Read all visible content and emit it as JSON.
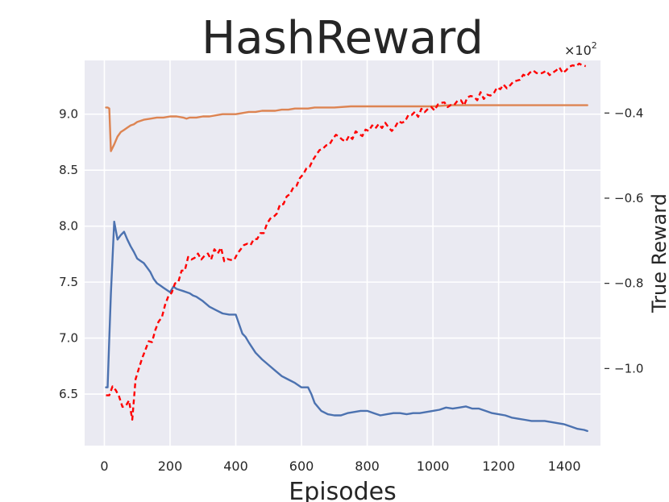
{
  "chart_data": {
    "type": "line",
    "title": "HashReward",
    "xlabel": "Episodes",
    "ylabel_left": "",
    "ylabel_right": "True Reward",
    "right_axis_multiplier": "×10",
    "right_axis_multiplier_exp": "2",
    "grid": true,
    "legend": "none",
    "background_color": "#EAEAF2",
    "x_ticks": [
      0,
      200,
      400,
      600,
      800,
      1000,
      1200,
      1400
    ],
    "xlim": [
      -60,
      1510
    ],
    "y_left_ticks": [
      "6.5",
      "7.0",
      "7.5",
      "8.0",
      "8.5",
      "9.0"
    ],
    "y_left_tick_values": [
      6.5,
      7.0,
      7.5,
      8.0,
      8.5,
      9.0
    ],
    "y_left_lim": [
      6.04,
      9.48
    ],
    "y_right_ticks": [
      "−1.0",
      "−0.8",
      "−0.6",
      "−0.4"
    ],
    "y_right_tick_values": [
      -1.0,
      -0.8,
      -0.6,
      -0.4
    ],
    "y_right_lim": [
      -1.181,
      -0.2765
    ],
    "series": [
      {
        "axis": "left",
        "color": "#4C72B0",
        "style": "solid",
        "x": [
          5,
          10,
          15,
          20,
          30,
          40,
          50,
          60,
          70,
          80,
          90,
          100,
          110,
          120,
          130,
          140,
          150,
          160,
          170,
          180,
          190,
          200,
          210,
          220,
          230,
          240,
          250,
          260,
          270,
          280,
          290,
          300,
          320,
          340,
          360,
          380,
          400,
          420,
          430,
          440,
          460,
          480,
          500,
          520,
          540,
          560,
          580,
          600,
          620,
          630,
          640,
          660,
          680,
          700,
          720,
          740,
          760,
          780,
          800,
          820,
          840,
          860,
          880,
          900,
          920,
          940,
          960,
          980,
          1000,
          1020,
          1040,
          1060,
          1080,
          1100,
          1120,
          1140,
          1160,
          1180,
          1200,
          1220,
          1240,
          1260,
          1280,
          1300,
          1320,
          1340,
          1360,
          1380,
          1400,
          1420,
          1440,
          1460,
          1470
        ],
        "y": [
          6.56,
          6.56,
          7.0,
          7.4,
          8.04,
          7.88,
          7.92,
          7.95,
          7.88,
          7.82,
          7.77,
          7.71,
          7.69,
          7.67,
          7.63,
          7.59,
          7.53,
          7.49,
          7.47,
          7.45,
          7.43,
          7.41,
          7.46,
          7.44,
          7.43,
          7.42,
          7.41,
          7.4,
          7.38,
          7.37,
          7.35,
          7.33,
          7.28,
          7.25,
          7.22,
          7.21,
          7.21,
          7.04,
          7.01,
          6.96,
          6.87,
          6.81,
          6.76,
          6.71,
          6.66,
          6.63,
          6.6,
          6.56,
          6.56,
          6.5,
          6.42,
          6.35,
          6.32,
          6.31,
          6.31,
          6.33,
          6.34,
          6.35,
          6.35,
          6.33,
          6.31,
          6.32,
          6.33,
          6.33,
          6.32,
          6.33,
          6.33,
          6.34,
          6.35,
          6.36,
          6.38,
          6.37,
          6.38,
          6.39,
          6.37,
          6.37,
          6.35,
          6.33,
          6.32,
          6.31,
          6.29,
          6.28,
          6.27,
          6.26,
          6.26,
          6.26,
          6.25,
          6.24,
          6.23,
          6.21,
          6.19,
          6.18,
          6.17
        ]
      },
      {
        "axis": "left",
        "color": "#DD8452",
        "style": "solid",
        "x": [
          5,
          10,
          15,
          20,
          30,
          40,
          50,
          60,
          70,
          80,
          90,
          100,
          120,
          140,
          160,
          180,
          200,
          220,
          240,
          250,
          260,
          280,
          300,
          320,
          340,
          360,
          380,
          400,
          420,
          440,
          460,
          480,
          500,
          520,
          540,
          560,
          580,
          600,
          620,
          640,
          660,
          700,
          750,
          800,
          850,
          900,
          950,
          1000,
          1050,
          1100,
          1150,
          1200,
          1250,
          1300,
          1350,
          1400,
          1470
        ],
        "y": [
          9.06,
          9.06,
          9.05,
          8.67,
          8.73,
          8.8,
          8.84,
          8.86,
          8.88,
          8.9,
          8.91,
          8.93,
          8.95,
          8.96,
          8.97,
          8.97,
          8.98,
          8.98,
          8.97,
          8.96,
          8.97,
          8.97,
          8.98,
          8.98,
          8.99,
          9.0,
          9.0,
          9.0,
          9.01,
          9.02,
          9.02,
          9.03,
          9.03,
          9.03,
          9.04,
          9.04,
          9.05,
          9.05,
          9.05,
          9.06,
          9.06,
          9.06,
          9.07,
          9.07,
          9.07,
          9.07,
          9.07,
          9.07,
          9.08,
          9.08,
          9.08,
          9.08,
          9.08,
          9.08,
          9.08,
          9.08,
          9.08
        ]
      },
      {
        "axis": "right",
        "color": "#FF0000",
        "style": "dashed",
        "x": [
          5,
          15,
          25,
          35,
          45,
          55,
          65,
          75,
          85,
          95,
          105,
          115,
          125,
          135,
          145,
          155,
          165,
          175,
          185,
          195,
          205,
          215,
          225,
          235,
          245,
          255,
          265,
          275,
          285,
          295,
          305,
          315,
          325,
          335,
          345,
          355,
          365,
          375,
          385,
          395,
          405,
          415,
          425,
          435,
          445,
          455,
          465,
          475,
          485,
          495,
          505,
          515,
          525,
          535,
          545,
          555,
          565,
          575,
          585,
          595,
          605,
          615,
          625,
          635,
          645,
          655,
          665,
          675,
          685,
          695,
          705,
          715,
          725,
          735,
          745,
          755,
          765,
          775,
          785,
          795,
          805,
          815,
          825,
          835,
          845,
          855,
          865,
          875,
          885,
          895,
          905,
          915,
          925,
          935,
          945,
          955,
          965,
          975,
          985,
          995,
          1005,
          1015,
          1025,
          1035,
          1045,
          1055,
          1065,
          1075,
          1085,
          1095,
          1105,
          1115,
          1125,
          1135,
          1145,
          1155,
          1165,
          1175,
          1185,
          1195,
          1205,
          1215,
          1225,
          1235,
          1245,
          1255,
          1265,
          1275,
          1285,
          1295,
          1305,
          1315,
          1325,
          1335,
          1345,
          1355,
          1365,
          1375,
          1385,
          1395,
          1405,
          1415,
          1425,
          1435,
          1445,
          1455,
          1465
        ],
        "y": [
          -1.063,
          -1.063,
          -1.042,
          -1.051,
          -1.066,
          -1.09,
          -1.088,
          -1.075,
          -1.12,
          -1.025,
          -1.0,
          -0.976,
          -0.956,
          -0.936,
          -0.938,
          -0.91,
          -0.89,
          -0.88,
          -0.85,
          -0.83,
          -0.822,
          -0.8,
          -0.797,
          -0.77,
          -0.77,
          -0.738,
          -0.744,
          -0.74,
          -0.73,
          -0.744,
          -0.735,
          -0.73,
          -0.744,
          -0.72,
          -0.73,
          -0.716,
          -0.748,
          -0.743,
          -0.745,
          -0.745,
          -0.73,
          -0.72,
          -0.71,
          -0.707,
          -0.71,
          -0.696,
          -0.696,
          -0.682,
          -0.682,
          -0.66,
          -0.648,
          -0.644,
          -0.636,
          -0.614,
          -0.614,
          -0.596,
          -0.59,
          -0.575,
          -0.571,
          -0.553,
          -0.544,
          -0.53,
          -0.526,
          -0.51,
          -0.498,
          -0.487,
          -0.484,
          -0.476,
          -0.474,
          -0.461,
          -0.451,
          -0.456,
          -0.463,
          -0.467,
          -0.453,
          -0.461,
          -0.443,
          -0.449,
          -0.454,
          -0.439,
          -0.442,
          -0.429,
          -0.436,
          -0.426,
          -0.435,
          -0.423,
          -0.434,
          -0.442,
          -0.433,
          -0.419,
          -0.423,
          -0.42,
          -0.405,
          -0.405,
          -0.397,
          -0.409,
          -0.39,
          -0.398,
          -0.39,
          -0.386,
          -0.394,
          -0.38,
          -0.376,
          -0.375,
          -0.386,
          -0.381,
          -0.381,
          -0.371,
          -0.37,
          -0.382,
          -0.363,
          -0.36,
          -0.362,
          -0.37,
          -0.351,
          -0.367,
          -0.357,
          -0.359,
          -0.354,
          -0.34,
          -0.344,
          -0.333,
          -0.342,
          -0.335,
          -0.326,
          -0.324,
          -0.322,
          -0.31,
          -0.314,
          -0.305,
          -0.3,
          -0.306,
          -0.308,
          -0.305,
          -0.301,
          -0.311,
          -0.305,
          -0.3,
          -0.293,
          -0.306,
          -0.3,
          -0.291,
          -0.288,
          -0.29,
          -0.284,
          -0.288,
          -0.29
        ]
      }
    ]
  }
}
